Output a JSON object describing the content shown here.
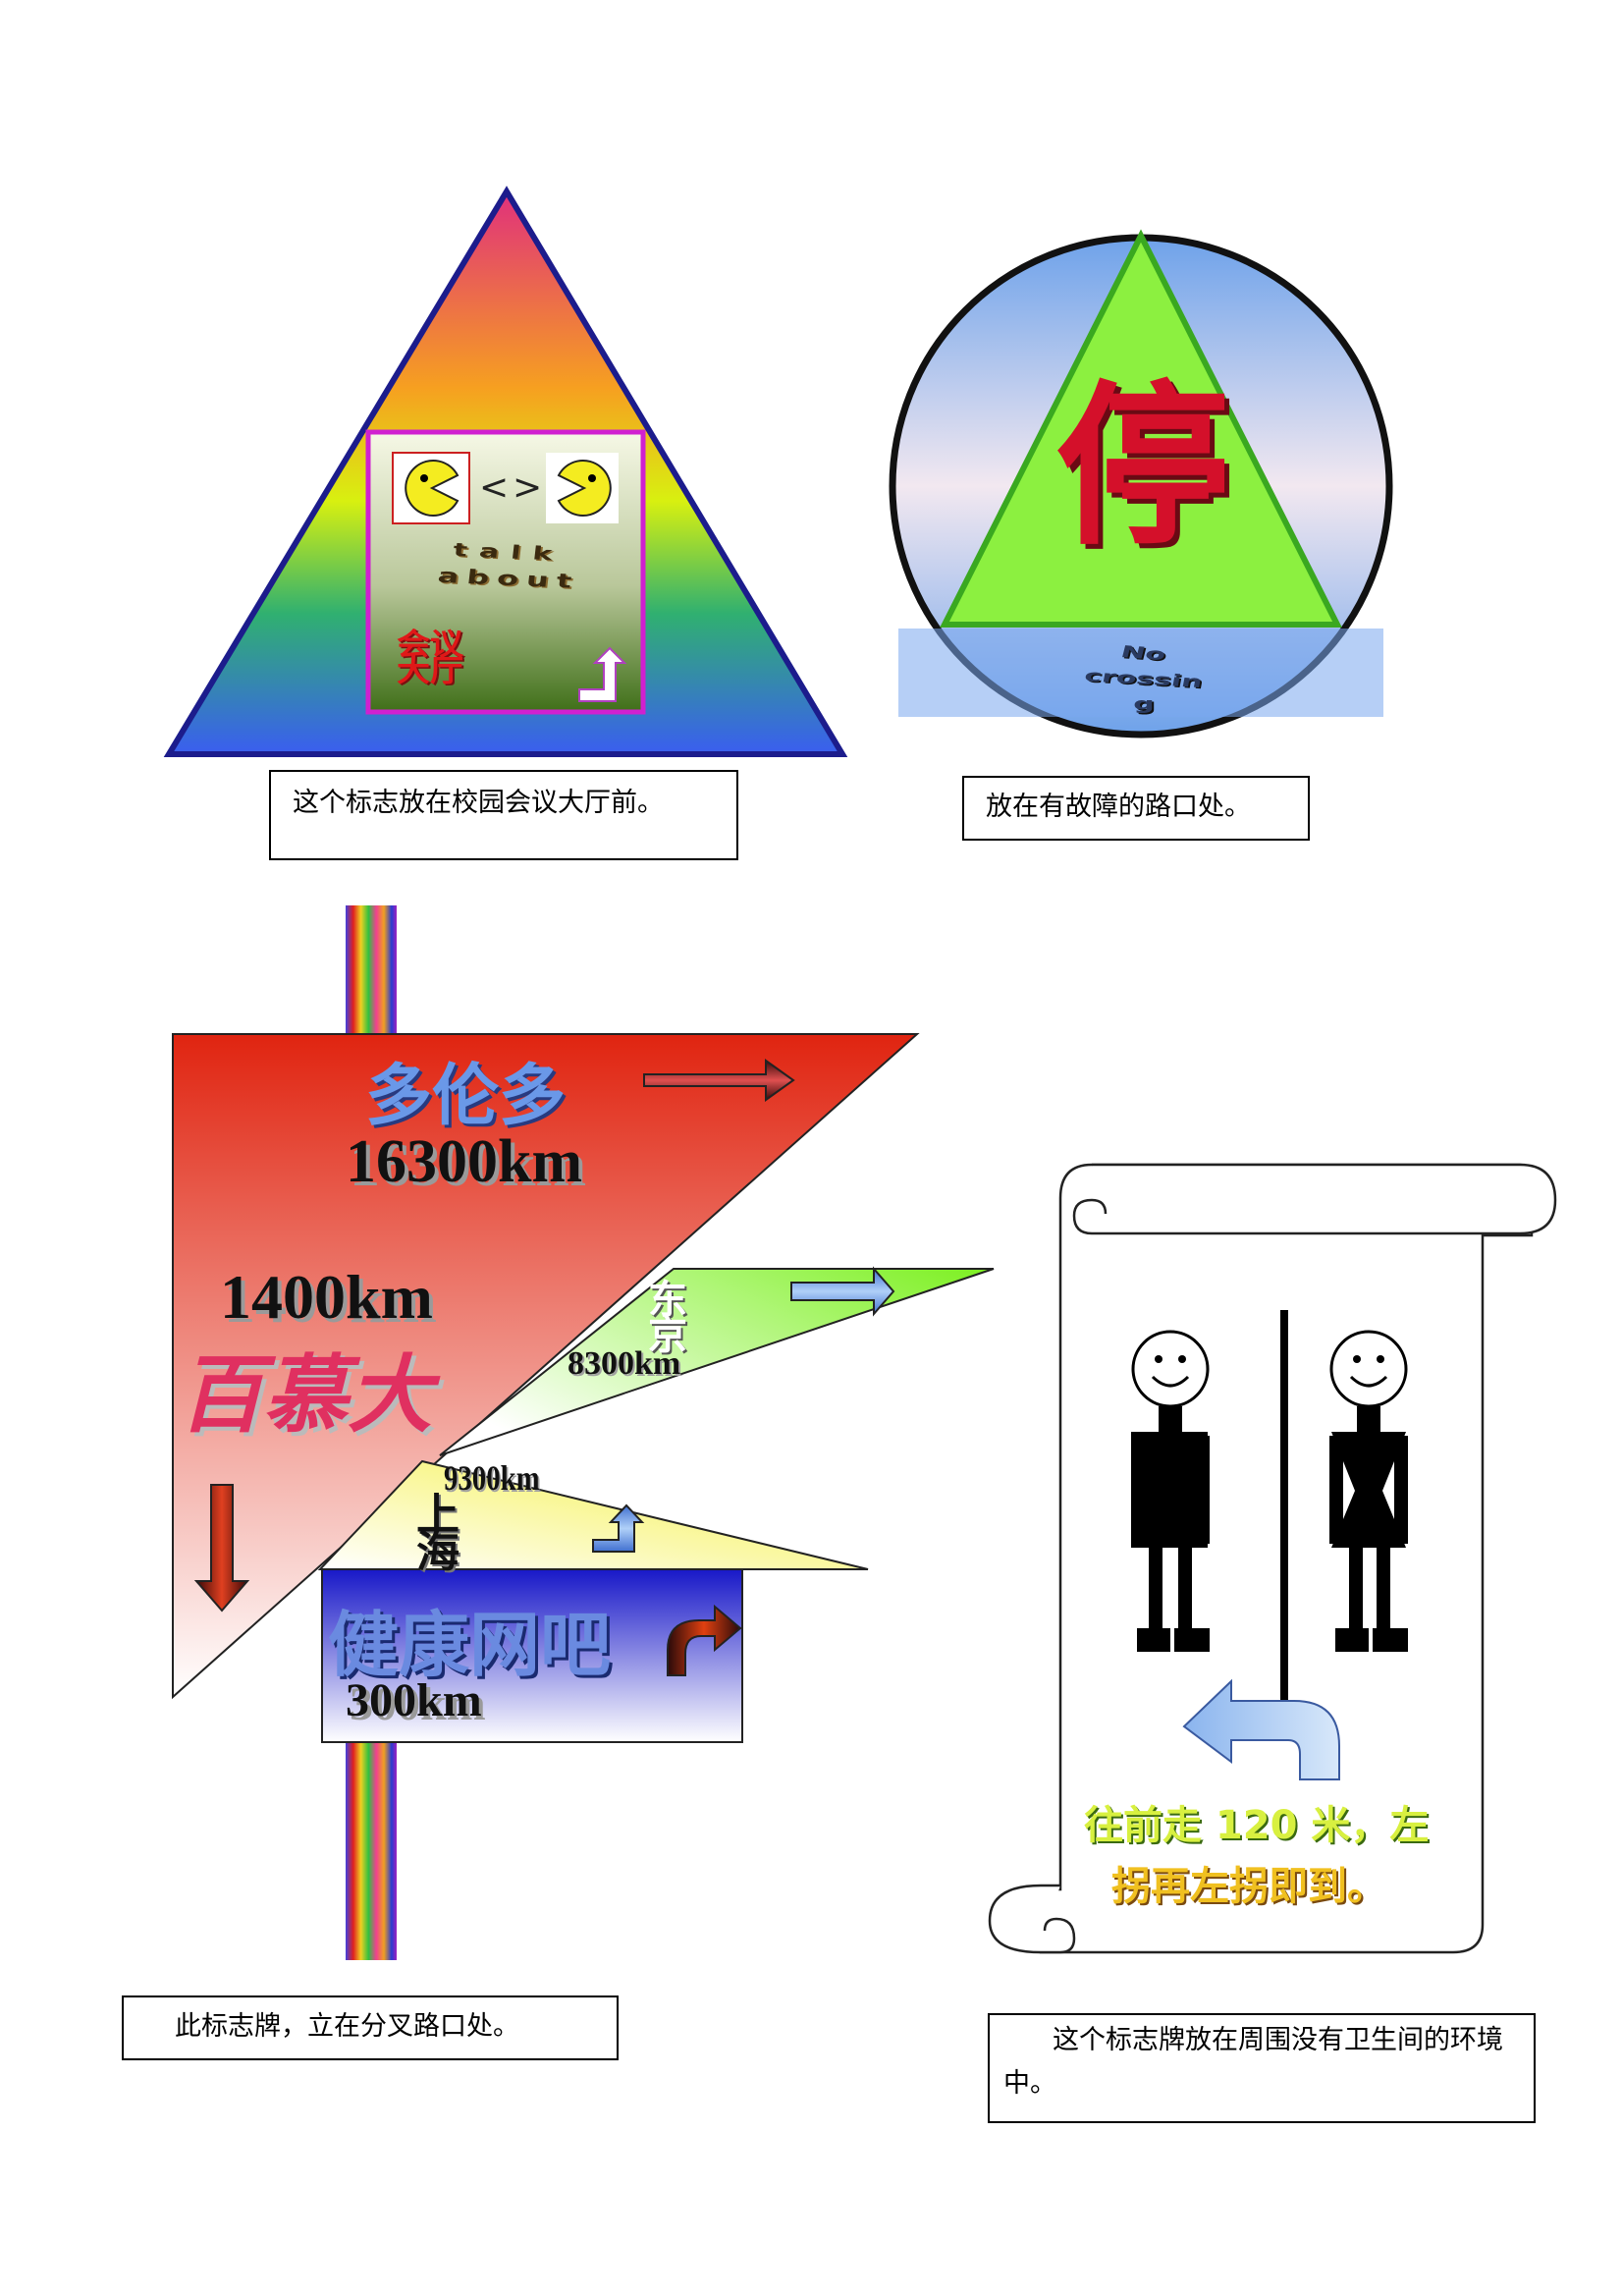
{
  "sign_meeting": {
    "line1": "talk",
    "line2": "about",
    "chinese": "会议大厅",
    "chinese_line1": "会议",
    "chinese_line2": "大厅",
    "caption": "这个标志放在校园会议大厅前。"
  },
  "sign_stop": {
    "character": "停",
    "english_line1": "No",
    "english_line2": "crossin",
    "english_line3": "g",
    "caption": "放在有故障的路口处。"
  },
  "sign_directions": {
    "toronto_name": "多伦多",
    "toronto_distance": "16300km",
    "second_distance": "1400km",
    "second_name": "百慕大",
    "third_name_line1": "东",
    "third_name_line2": "京",
    "third_distance": "8300km",
    "fourth_distance": "9300km",
    "fourth_name_line1": "上",
    "fourth_name_line2": "海",
    "fifth_name": "健康网吧",
    "fifth_distance": "300km",
    "caption": "此标志牌，立在分叉路口处。"
  },
  "sign_restroom": {
    "directions_line1": "往前走 120 米，左",
    "directions_line2": "拐再左拐即到。",
    "caption": "这个标志牌放在周围没有卫生间的环境中。"
  },
  "colors": {
    "border_navy": "#1c1c8c",
    "inner_border_magenta": "#d020d0",
    "stop_green": "#8cf040",
    "stop_red": "#d4102a",
    "arrow_red": "#6a1010",
    "arrow_blue": "#6a9ae0"
  }
}
